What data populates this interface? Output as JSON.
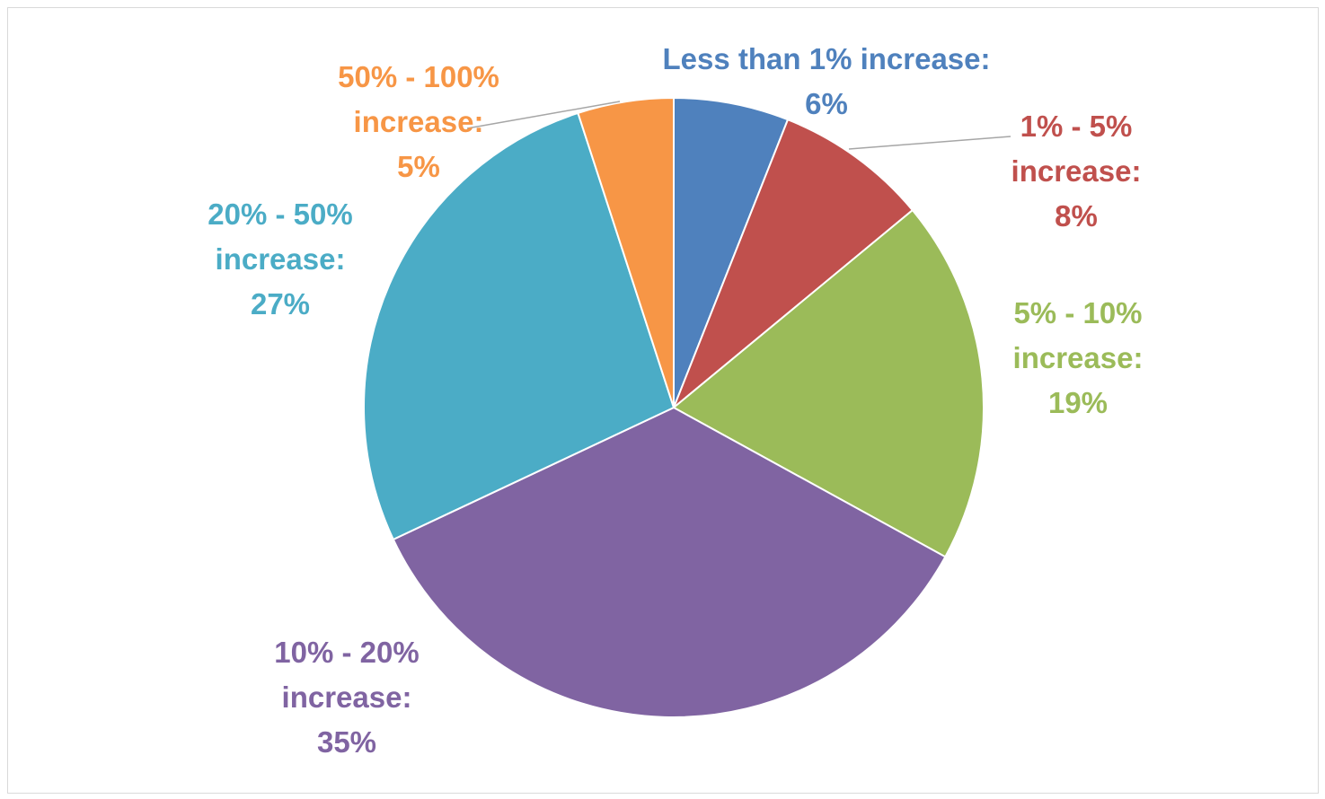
{
  "chart_data": {
    "type": "pie",
    "title": "",
    "slices": [
      {
        "label": "Less than 1% increase",
        "value": 6,
        "value_label": "6%",
        "color": "#4F81BD"
      },
      {
        "label": "1% - 5% increase",
        "value": 8,
        "value_label": "8%",
        "color": "#C0504D"
      },
      {
        "label": "5% - 10% increase",
        "value": 19,
        "value_label": "19%",
        "color": "#9BBB59"
      },
      {
        "label": "10% - 20% increase",
        "value": 35,
        "value_label": "35%",
        "color": "#8064A2"
      },
      {
        "label": "20% - 50% increase",
        "value": 27,
        "value_label": "27%",
        "color": "#4BACC6"
      },
      {
        "label": "50% - 100% increase",
        "value": 5,
        "value_label": "5%",
        "color": "#F79646"
      }
    ],
    "data_labels": [
      {
        "lines": [
          "Less than 1% increase:",
          "6%"
        ]
      },
      {
        "lines": [
          "1% - 5%",
          "increase:",
          "8%"
        ]
      },
      {
        "lines": [
          "5% - 10%",
          "increase:",
          "19%"
        ]
      },
      {
        "lines": [
          "10% - 20%",
          "increase:",
          "35%"
        ]
      },
      {
        "lines": [
          "20% - 50%",
          "increase:",
          "27%"
        ]
      },
      {
        "lines": [
          "50% - 100%",
          "increase:",
          "5%"
        ]
      }
    ],
    "legend": "none",
    "start_angle": "12 o'clock",
    "direction": "clockwise"
  }
}
